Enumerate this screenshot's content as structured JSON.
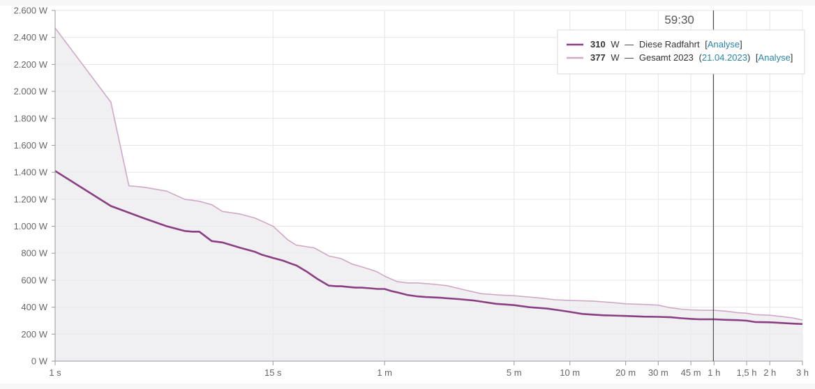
{
  "chart_data": {
    "type": "line",
    "title": "",
    "xlabel": "",
    "ylabel": "",
    "x_scale": "log",
    "x_unit": "seconds",
    "ylim": [
      0,
      2600
    ],
    "xlim": [
      1,
      10800
    ],
    "y_ticks": [
      {
        "value": 0,
        "label": "0 W"
      },
      {
        "value": 200,
        "label": "200 W"
      },
      {
        "value": 400,
        "label": "400 W"
      },
      {
        "value": 600,
        "label": "600 W"
      },
      {
        "value": 800,
        "label": "800 W"
      },
      {
        "value": 1000,
        "label": "1.000 W"
      },
      {
        "value": 1200,
        "label": "1.200 W"
      },
      {
        "value": 1400,
        "label": "1.400 W"
      },
      {
        "value": 1600,
        "label": "1.600 W"
      },
      {
        "value": 1800,
        "label": "1.800 W"
      },
      {
        "value": 2000,
        "label": "2.000 W"
      },
      {
        "value": 2200,
        "label": "2.200 W"
      },
      {
        "value": 2400,
        "label": "2.400 W"
      },
      {
        "value": 2600,
        "label": "2.600 W"
      }
    ],
    "x_ticks": [
      {
        "value": 1,
        "label": "1 s"
      },
      {
        "value": 15,
        "label": "15 s"
      },
      {
        "value": 60,
        "label": "1 m"
      },
      {
        "value": 300,
        "label": "5 m"
      },
      {
        "value": 600,
        "label": "10 m"
      },
      {
        "value": 1200,
        "label": "20 m"
      },
      {
        "value": 1800,
        "label": "30 m"
      },
      {
        "value": 2700,
        "label": "45 m"
      },
      {
        "value": 3600,
        "label": "1 h"
      },
      {
        "value": 5400,
        "label": "1,5 h"
      },
      {
        "value": 7200,
        "label": "2 h"
      },
      {
        "value": 10800,
        "label": "3 h"
      }
    ],
    "grid": true,
    "cursor": {
      "x": 3570,
      "label": "59:30"
    },
    "series": [
      {
        "name": "Diese Radfahrt",
        "color": "#8a3f82",
        "x": [
          1,
          2,
          3,
          4,
          5,
          5.5,
          6,
          7,
          8,
          10,
          12,
          13,
          15,
          17,
          19,
          20,
          23,
          26,
          30,
          33,
          35,
          38,
          42,
          45,
          50,
          55,
          60,
          65,
          70,
          80,
          90,
          100,
          120,
          150,
          180,
          240,
          300,
          360,
          450,
          540,
          600,
          700,
          900,
          1200,
          1500,
          1800,
          2100,
          2400,
          2700,
          3000,
          3600,
          4200,
          4800,
          5400,
          6000,
          7200,
          8400,
          9600,
          10800
        ],
        "values": [
          1410,
          1150,
          1060,
          1000,
          965,
          960,
          960,
          890,
          880,
          840,
          810,
          790,
          765,
          745,
          720,
          710,
          660,
          610,
          560,
          555,
          555,
          550,
          545,
          545,
          540,
          535,
          535,
          520,
          510,
          490,
          480,
          475,
          470,
          460,
          450,
          425,
          415,
          400,
          390,
          375,
          365,
          350,
          340,
          335,
          330,
          328,
          325,
          318,
          313,
          310,
          310,
          306,
          304,
          300,
          290,
          288,
          283,
          278,
          275
        ]
      },
      {
        "name": "Gesamt 2023",
        "color": "#d0a8c6",
        "x": [
          1,
          2,
          2.5,
          3,
          4,
          5,
          6,
          7,
          8,
          10,
          12,
          15,
          18,
          20,
          25,
          30,
          35,
          40,
          45,
          50,
          55,
          60,
          70,
          80,
          90,
          110,
          130,
          160,
          200,
          250,
          300,
          400,
          500,
          600,
          800,
          1000,
          1200,
          1500,
          1800,
          2100,
          2400,
          2700,
          3000,
          3600,
          4200,
          4800,
          5400,
          6000,
          7200,
          8400,
          9600,
          10800
        ],
        "values": [
          2470,
          1920,
          1300,
          1290,
          1260,
          1200,
          1185,
          1160,
          1110,
          1090,
          1060,
          1000,
          900,
          860,
          840,
          780,
          760,
          720,
          700,
          680,
          660,
          630,
          590,
          580,
          580,
          570,
          560,
          530,
          500,
          490,
          485,
          470,
          455,
          450,
          445,
          435,
          425,
          420,
          415,
          395,
          385,
          380,
          378,
          377,
          370,
          360,
          355,
          345,
          340,
          330,
          320,
          305
        ]
      }
    ]
  },
  "legend": {
    "items": [
      {
        "value": "310",
        "unit": "W",
        "dash": "—",
        "name": "Diese Radfahrt",
        "bracket_open": "[",
        "link": "Analyse",
        "bracket_close": "]"
      },
      {
        "value": "377",
        "unit": "W",
        "dash": "—",
        "name": "Gesamt 2023",
        "paren_open": "(",
        "date": "21.04.2023",
        "paren_close": ")",
        "bracket_open": "[",
        "link": "Analyse",
        "bracket_close": "]"
      }
    ]
  },
  "colors": {
    "series_primary": "#8a3f82",
    "series_secondary": "#d0a8c6",
    "fill": "#ebe9ec",
    "grid": "#e6e6e6",
    "axis": "#999999",
    "cursor": "#333333",
    "link": "#2a86a8"
  }
}
